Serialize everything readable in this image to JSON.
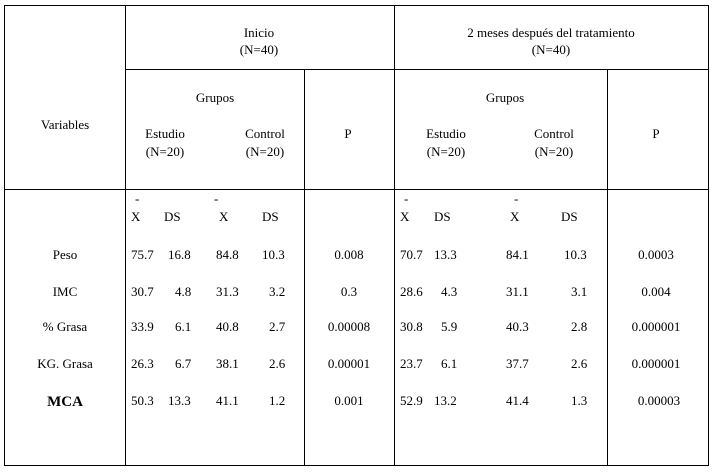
{
  "header": {
    "variables_label": "Variables",
    "inicio": {
      "title": "Inicio",
      "n": "(N=40)"
    },
    "despues": {
      "title": "2 meses después del tratamiento",
      "n": "(N=40)"
    },
    "grupos_label": "Grupos",
    "estudio_label": "Estudio",
    "estudio_n": "(N=20)",
    "control_label": "Control",
    "control_n": "(N=20)",
    "p_label": "P",
    "stat_bar": "-",
    "stat_x": "X",
    "stat_ds": "DS"
  },
  "rows": [
    {
      "variable": "Peso",
      "ini_est_x": "75.7",
      "ini_est_ds": "16.8",
      "ini_ctl_x": "84.8",
      "ini_ctl_ds": "10.3",
      "ini_p": "0.008",
      "pos_est_x": "70.7",
      "pos_est_ds": "13.3",
      "pos_ctl_x": "84.1",
      "pos_ctl_ds": "10.3",
      "pos_p": "0.0003"
    },
    {
      "variable": "IMC",
      "ini_est_x": "30.7",
      "ini_est_ds": "4.8",
      "ini_ctl_x": "31.3",
      "ini_ctl_ds": "3.2",
      "ini_p": "0.3",
      "pos_est_x": "28.6",
      "pos_est_ds": "4.3",
      "pos_ctl_x": "31.1",
      "pos_ctl_ds": "3.1",
      "pos_p": "0.004"
    },
    {
      "variable": "% Grasa",
      "ini_est_x": "33.9",
      "ini_est_ds": "6.1",
      "ini_ctl_x": "40.8",
      "ini_ctl_ds": "2.7",
      "ini_p": "0.00008",
      "pos_est_x": "30.8",
      "pos_est_ds": "5.9",
      "pos_ctl_x": "40.3",
      "pos_ctl_ds": "2.8",
      "pos_p": "0.000001"
    },
    {
      "variable": "KG. Grasa",
      "ini_est_x": "26.3",
      "ini_est_ds": "6.7",
      "ini_ctl_x": "38.1",
      "ini_ctl_ds": "2.6",
      "ini_p": "0.00001",
      "pos_est_x": "23.7",
      "pos_est_ds": "6.1",
      "pos_ctl_x": "37.7",
      "pos_ctl_ds": "2.6",
      "pos_p": "0.000001"
    },
    {
      "variable": "MCA",
      "ini_est_x": "50.3",
      "ini_est_ds": "13.3",
      "ini_ctl_x": "41.1",
      "ini_ctl_ds": "1.2",
      "ini_p": "0.001",
      "pos_est_x": "52.9",
      "pos_est_ds": "13.2",
      "pos_ctl_x": "41.4",
      "pos_ctl_ds": "1.3",
      "pos_p": "0.00003"
    }
  ]
}
